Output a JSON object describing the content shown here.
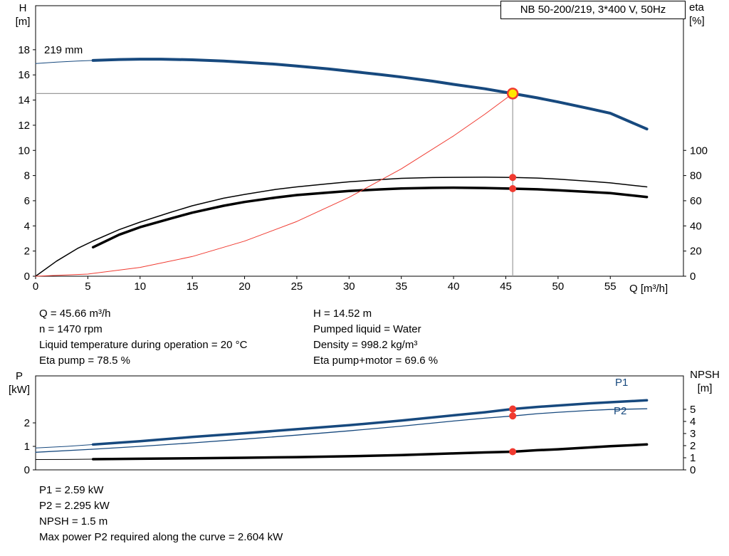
{
  "labels": {
    "title_box": "NB 50-200/219, 3*400 V, 50Hz",
    "impeller": "219 mm",
    "h_axis": [
      "H",
      "[m]"
    ],
    "eta_axis": [
      "eta",
      "[%]"
    ],
    "q_axis": "Q [m³/h]",
    "p_axis": [
      "P",
      "[kW]"
    ],
    "npsh_axis": [
      "NPSH",
      "[m]"
    ],
    "p1": "P1",
    "p2": "P2"
  },
  "info_top_left": [
    "Q = 45.66 m³/h",
    "n = 1470 rpm",
    "Liquid temperature during operation = 20 °C",
    "Eta pump = 78.5 %"
  ],
  "info_top_right": [
    "H = 14.52 m",
    "Pumped liquid = Water",
    "Density = 998.2 kg/m³",
    "Eta pump+motor = 69.6 %"
  ],
  "info_bottom": [
    "P1 = 2.59 kW",
    "P2 = 2.295 kW",
    "NPSH = 1.5 m",
    "Max power P2 required along the curve = 2.604 kW"
  ],
  "chart_data": [
    {
      "id": "hq-eta-chart",
      "type": "line",
      "title": "NB 50-200/219, 3*400 V, 50Hz",
      "x_axis": {
        "label": "Q [m³/h]",
        "min": 0,
        "max": 62,
        "ticks": [
          0,
          5,
          10,
          15,
          20,
          25,
          30,
          35,
          40,
          45,
          50,
          55
        ]
      },
      "left_axis": {
        "label": "H [m]",
        "min": 0,
        "max": 21.5,
        "ticks": [
          0,
          2,
          4,
          6,
          8,
          10,
          12,
          14,
          16,
          18
        ]
      },
      "right_axis": {
        "label": "eta [%]",
        "min": 0,
        "max": 215,
        "ticks": [
          0,
          20,
          40,
          60,
          80,
          100
        ]
      },
      "crosshair": {
        "q": 45.66,
        "h": 14.52,
        "color": "#9a9a9a"
      },
      "series": [
        {
          "name": "head-curve-lead",
          "axis": "left",
          "color": "#17497e",
          "width": 1,
          "points": [
            [
              0,
              16.9
            ],
            [
              2,
              17.02
            ],
            [
              4,
              17.1
            ],
            [
              5.5,
              17.15
            ]
          ]
        },
        {
          "name": "head-curve",
          "axis": "left",
          "color": "#17497e",
          "width": 4,
          "points": [
            [
              5.5,
              17.15
            ],
            [
              8,
              17.22
            ],
            [
              10,
              17.25
            ],
            [
              12,
              17.25
            ],
            [
              15,
              17.2
            ],
            [
              18,
              17.1
            ],
            [
              20,
              17.0
            ],
            [
              23,
              16.85
            ],
            [
              25,
              16.7
            ],
            [
              28,
              16.48
            ],
            [
              30,
              16.3
            ],
            [
              33,
              16.03
            ],
            [
              35,
              15.83
            ],
            [
              38,
              15.5
            ],
            [
              40,
              15.25
            ],
            [
              43,
              14.9
            ],
            [
              45.66,
              14.52
            ],
            [
              48,
              14.18
            ],
            [
              50,
              13.85
            ],
            [
              53,
              13.32
            ],
            [
              55,
              12.95
            ],
            [
              58.5,
              11.7
            ]
          ]
        },
        {
          "name": "eta-pump-curve",
          "axis": "right",
          "color": "#000000",
          "width": 1.5,
          "points": [
            [
              0,
              0
            ],
            [
              2,
              12
            ],
            [
              4,
              22
            ],
            [
              5.5,
              28
            ],
            [
              8,
              37
            ],
            [
              10,
              43
            ],
            [
              13,
              51
            ],
            [
              15,
              56
            ],
            [
              18,
              62
            ],
            [
              20,
              65
            ],
            [
              23,
              69
            ],
            [
              25,
              71
            ],
            [
              28,
              73.5
            ],
            [
              30,
              75
            ],
            [
              33,
              76.8
            ],
            [
              35,
              77.8
            ],
            [
              38,
              78.4
            ],
            [
              40,
              78.6
            ],
            [
              43,
              78.7
            ],
            [
              45.66,
              78.5
            ],
            [
              48,
              78
            ],
            [
              50,
              77.2
            ],
            [
              53,
              75.5
            ],
            [
              55,
              74.2
            ],
            [
              58.5,
              71
            ]
          ]
        },
        {
          "name": "eta-pump-motor-curve",
          "axis": "right",
          "color": "#000000",
          "width": 3.5,
          "points": [
            [
              5.5,
              23
            ],
            [
              8,
              33
            ],
            [
              10,
              39
            ],
            [
              13,
              46
            ],
            [
              15,
              50.5
            ],
            [
              18,
              56
            ],
            [
              20,
              59
            ],
            [
              23,
              62.5
            ],
            [
              25,
              64.5
            ],
            [
              28,
              66.5
            ],
            [
              30,
              67.8
            ],
            [
              33,
              69
            ],
            [
              35,
              69.7
            ],
            [
              38,
              70.2
            ],
            [
              40,
              70.4
            ],
            [
              43,
              70.1
            ],
            [
              45.66,
              69.6
            ],
            [
              48,
              69.1
            ],
            [
              50,
              68.3
            ],
            [
              53,
              67
            ],
            [
              55,
              66
            ],
            [
              58.5,
              63
            ]
          ]
        },
        {
          "name": "system-curve",
          "axis": "left",
          "color": "#f03a30",
          "width": 1,
          "points": [
            [
              0,
              0
            ],
            [
              5,
              0.17
            ],
            [
              10,
              0.7
            ],
            [
              15,
              1.57
            ],
            [
              20,
              2.79
            ],
            [
              25,
              4.35
            ],
            [
              30,
              6.27
            ],
            [
              35,
              8.53
            ],
            [
              40,
              11.15
            ],
            [
              43,
              12.88
            ],
            [
              45.66,
              14.52
            ]
          ]
        }
      ],
      "markers": [
        {
          "name": "duty-point",
          "q": 45.66,
          "value": 14.52,
          "axis": "left",
          "r": 7,
          "fill": "#ffe800",
          "stroke": "#f03a30",
          "stroke_width": 2.5
        },
        {
          "name": "eta-pump-point",
          "q": 45.66,
          "value": 78.5,
          "axis": "right",
          "r": 5,
          "fill": "#f03a30"
        },
        {
          "name": "eta-motor-point",
          "q": 45.66,
          "value": 69.6,
          "axis": "right",
          "r": 5,
          "fill": "#f03a30"
        }
      ]
    },
    {
      "id": "power-npsh-chart",
      "type": "line",
      "x_axis": {
        "label": "",
        "min": 0,
        "max": 62,
        "ticks": []
      },
      "left_axis": {
        "label": "P [kW]",
        "min": 0,
        "max": 4,
        "ticks": [
          0,
          1,
          2
        ]
      },
      "right_axis": {
        "label": "NPSH [m]",
        "min": 0,
        "max": 7.76,
        "ticks": [
          0,
          1,
          2,
          3,
          4,
          5
        ]
      },
      "series": [
        {
          "name": "p1-curve-lead",
          "axis": "left",
          "color": "#17497e",
          "width": 1,
          "points": [
            [
              0,
              0.93
            ],
            [
              3,
              1.0
            ],
            [
              5.5,
              1.08
            ]
          ]
        },
        {
          "name": "p1-curve",
          "axis": "left",
          "color": "#17497e",
          "width": 3.5,
          "points": [
            [
              5.5,
              1.08
            ],
            [
              10,
              1.22
            ],
            [
              15,
              1.4
            ],
            [
              20,
              1.56
            ],
            [
              25,
              1.73
            ],
            [
              30,
              1.9
            ],
            [
              35,
              2.1
            ],
            [
              40,
              2.32
            ],
            [
              43,
              2.45
            ],
            [
              45.66,
              2.59
            ],
            [
              48,
              2.68
            ],
            [
              50,
              2.74
            ],
            [
              53,
              2.83
            ],
            [
              55,
              2.88
            ],
            [
              58.5,
              2.96
            ]
          ]
        },
        {
          "name": "p2-curve",
          "axis": "left",
          "color": "#17497e",
          "width": 1.3,
          "points": [
            [
              0,
              0.75
            ],
            [
              5.5,
              0.88
            ],
            [
              10,
              1.0
            ],
            [
              15,
              1.15
            ],
            [
              20,
              1.31
            ],
            [
              25,
              1.48
            ],
            [
              30,
              1.66
            ],
            [
              35,
              1.86
            ],
            [
              40,
              2.08
            ],
            [
              43,
              2.2
            ],
            [
              45.66,
              2.295
            ],
            [
              48,
              2.39
            ],
            [
              50,
              2.45
            ],
            [
              53,
              2.53
            ],
            [
              55,
              2.57
            ],
            [
              58.5,
              2.6
            ]
          ]
        },
        {
          "name": "npsh-curve-lead",
          "axis": "right",
          "color": "#000000",
          "width": 1,
          "points": [
            [
              0,
              0.85
            ],
            [
              3,
              0.86
            ],
            [
              5.5,
              0.88
            ]
          ]
        },
        {
          "name": "npsh-curve",
          "axis": "right",
          "color": "#000000",
          "width": 3.5,
          "points": [
            [
              5.5,
              0.88
            ],
            [
              10,
              0.92
            ],
            [
              15,
              0.96
            ],
            [
              20,
              1.0
            ],
            [
              25,
              1.05
            ],
            [
              30,
              1.12
            ],
            [
              35,
              1.22
            ],
            [
              40,
              1.36
            ],
            [
              43,
              1.44
            ],
            [
              45.66,
              1.5
            ],
            [
              48,
              1.62
            ],
            [
              50,
              1.7
            ],
            [
              53,
              1.85
            ],
            [
              55,
              1.95
            ],
            [
              58.5,
              2.1
            ]
          ]
        }
      ],
      "markers": [
        {
          "name": "p1-point",
          "q": 45.66,
          "value": 2.59,
          "axis": "left",
          "r": 5,
          "fill": "#f03a30"
        },
        {
          "name": "p2-point",
          "q": 45.66,
          "value": 2.295,
          "axis": "left",
          "r": 5,
          "fill": "#f03a30"
        },
        {
          "name": "npsh-point",
          "q": 45.66,
          "value": 1.5,
          "axis": "right",
          "r": 5,
          "fill": "#f03a30"
        }
      ]
    }
  ]
}
